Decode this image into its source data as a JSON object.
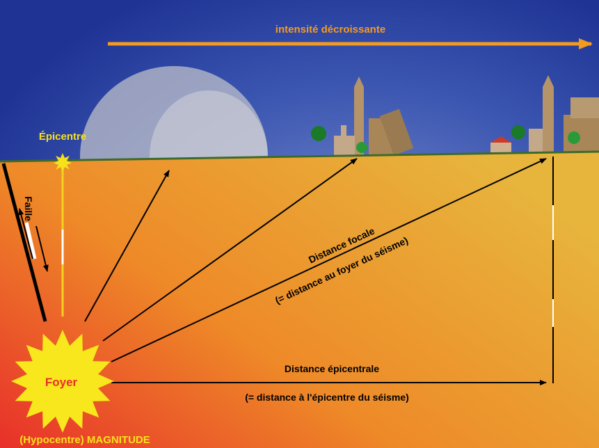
{
  "top_arrow": {
    "label": "intensité décroissante"
  },
  "epicentre": {
    "label": "Épicentre"
  },
  "fault": {
    "label": "Faille"
  },
  "focus": {
    "label": "Foyer",
    "caption": "(Hypocentre) MAGNITUDE"
  },
  "focal_distance": {
    "label": "Distance focale",
    "note": "(= distance au foyer du séisme)"
  },
  "epicentral_distance": {
    "label": "Distance épicentrale",
    "note": "(= distance à l'épicentre du séisme)"
  }
}
